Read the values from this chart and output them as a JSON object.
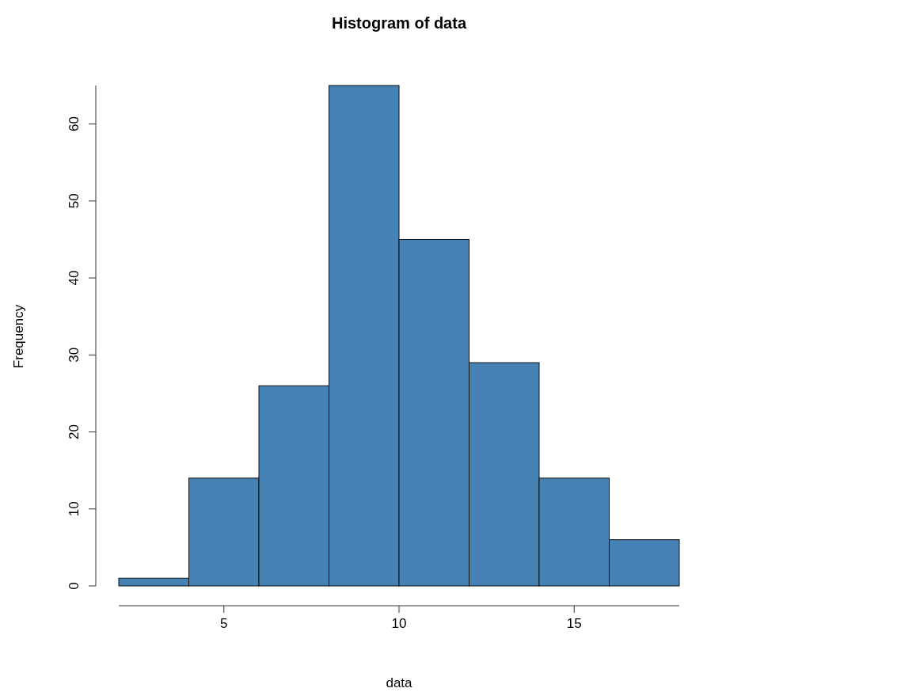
{
  "chart_data": {
    "type": "histogram",
    "title": "Histogram of data",
    "xlabel": "data",
    "ylabel": "Frequency",
    "bins": [
      2,
      4,
      6,
      8,
      10,
      12,
      14,
      16,
      18
    ],
    "values": [
      1,
      14,
      26,
      65,
      45,
      29,
      14,
      6
    ],
    "color": "#4682b4",
    "xlim": [
      2,
      18
    ],
    "xticks": [
      5,
      10,
      15
    ],
    "ylim": [
      0,
      65
    ],
    "yticks": [
      0,
      10,
      20,
      30,
      40,
      50,
      60
    ],
    "grid": false
  }
}
